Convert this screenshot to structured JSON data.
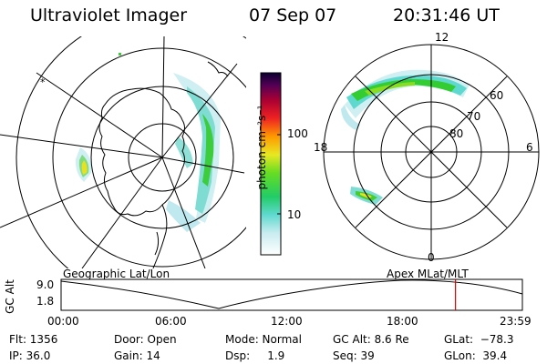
{
  "header": {
    "instrument": "Ultraviolet Imager",
    "date": "07 Sep 07",
    "time": "20:31:46 UT"
  },
  "colorbar": {
    "label": "photon cm⁻²s⁻¹",
    "ticks": [
      "100",
      "10"
    ],
    "scale": "log"
  },
  "left_map": {
    "caption": "Geographic Lat/Lon"
  },
  "right_map": {
    "caption": "Apex  MLat/MLT",
    "mlt_labels": {
      "top": "12",
      "bottom": "0",
      "left": "18",
      "right": "6"
    },
    "mlat_labels": [
      "60",
      "70",
      "80"
    ]
  },
  "timeline": {
    "axis_title": "GC Alt",
    "y_max": "9.0",
    "y_min": "1.8",
    "x_ticks": [
      "00:00",
      "06:00",
      "12:00",
      "18:00",
      "23:59"
    ],
    "current_time_fraction": 0.855
  },
  "status": {
    "flt": "Flt: 1356",
    "ip": "IP: 36.0",
    "door": "Door: Open",
    "gain": "Gain: 14",
    "mode": "Mode: Normal",
    "dsp": "Dsp:     1.9",
    "gc_alt": "GC Alt: 8.6 Re",
    "seq": "Seq: 39",
    "glat": "GLat:  −78.3",
    "glon": "GLon:  39.4"
  },
  "colors": {
    "time_marker": "#dd0000",
    "aurora_high": "#33cc33",
    "aurora_mid": "#66d9cc",
    "aurora_low": "#ccecf0"
  }
}
